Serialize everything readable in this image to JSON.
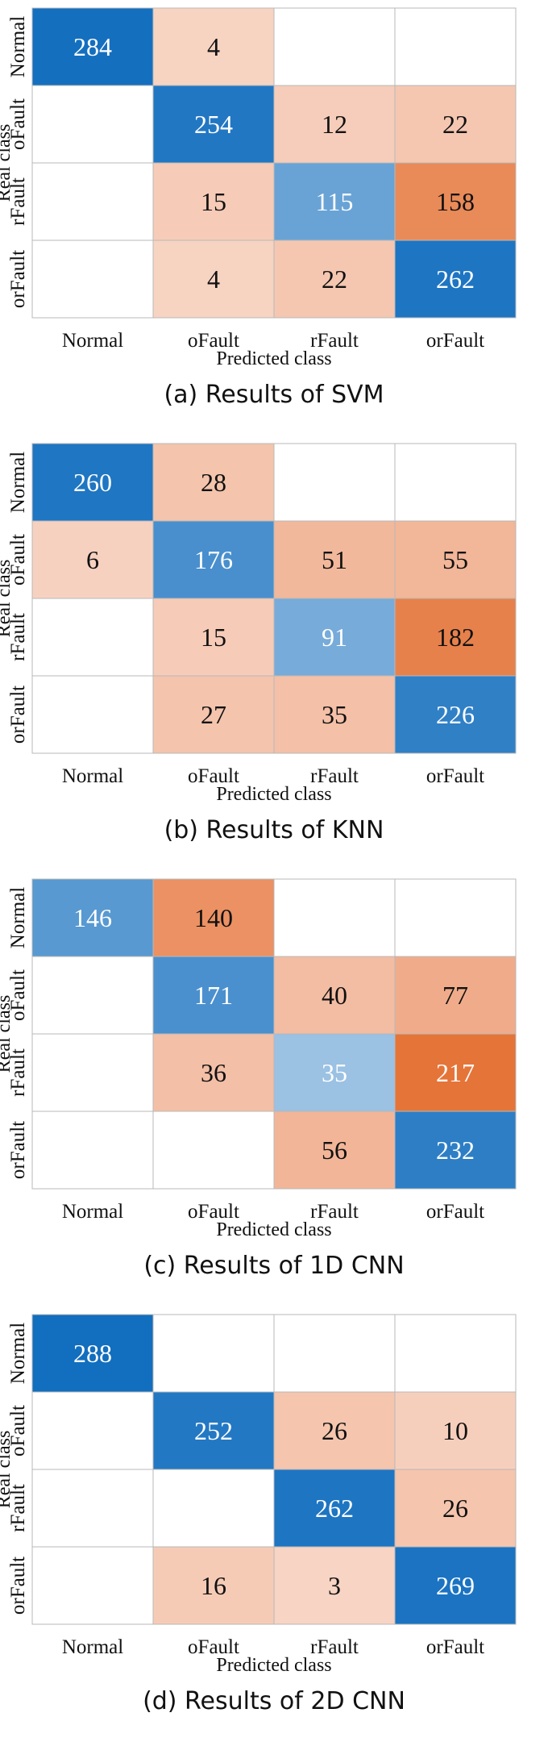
{
  "chart_data": [
    {
      "type": "heatmap",
      "caption": "(a) Results of SVM",
      "xlabel": "Predicted class",
      "ylabel": "Real class",
      "x_categories": [
        "Normal",
        "oFault",
        "rFault",
        "orFault"
      ],
      "y_categories": [
        "Normal",
        "oFault",
        "rFault",
        "orFault"
      ],
      "values": [
        [
          284,
          4,
          null,
          null
        ],
        [
          null,
          254,
          12,
          22
        ],
        [
          null,
          15,
          115,
          158
        ],
        [
          null,
          4,
          22,
          262
        ]
      ]
    },
    {
      "type": "heatmap",
      "caption": "(b) Results of KNN",
      "xlabel": "Predicted class",
      "ylabel": "Real class",
      "x_categories": [
        "Normal",
        "oFault",
        "rFault",
        "orFault"
      ],
      "y_categories": [
        "Normal",
        "oFault",
        "rFault",
        "orFault"
      ],
      "values": [
        [
          260,
          28,
          null,
          null
        ],
        [
          6,
          176,
          51,
          55
        ],
        [
          null,
          15,
          91,
          182
        ],
        [
          null,
          27,
          35,
          226
        ]
      ]
    },
    {
      "type": "heatmap",
      "caption": "(c) Results of 1D CNN",
      "xlabel": "Predicted class",
      "ylabel": "Real class",
      "x_categories": [
        "Normal",
        "oFault",
        "rFault",
        "orFault"
      ],
      "y_categories": [
        "Normal",
        "oFault",
        "rFault",
        "orFault"
      ],
      "values": [
        [
          146,
          140,
          null,
          null
        ],
        [
          null,
          171,
          40,
          77
        ],
        [
          null,
          36,
          35,
          217
        ],
        [
          null,
          null,
          56,
          232
        ]
      ]
    },
    {
      "type": "heatmap",
      "caption": "(d) Results of 2D CNN",
      "xlabel": "Predicted class",
      "ylabel": "Real class",
      "x_categories": [
        "Normal",
        "oFault",
        "rFault",
        "orFault"
      ],
      "y_categories": [
        "Normal",
        "oFault",
        "rFault",
        "orFault"
      ],
      "values": [
        [
          288,
          null,
          null,
          null
        ],
        [
          null,
          252,
          26,
          10
        ],
        [
          null,
          null,
          262,
          26
        ],
        [
          null,
          16,
          3,
          269
        ]
      ]
    }
  ]
}
